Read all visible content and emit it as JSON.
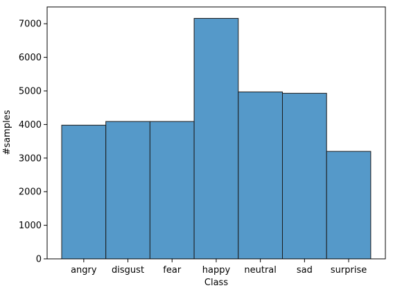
{
  "chart_data": {
    "type": "bar",
    "title": "",
    "xlabel": "Class",
    "ylabel": "#samples",
    "categories": [
      "angry",
      "disgust",
      "fear",
      "happy",
      "neutral",
      "sad",
      "surprise"
    ],
    "values": [
      3980,
      4090,
      4090,
      7160,
      4970,
      4930,
      3200
    ],
    "ylim": [
      0,
      7500
    ],
    "yticks": [
      0,
      1000,
      2000,
      3000,
      4000,
      5000,
      6000,
      7000
    ],
    "grid": false,
    "bar_color": "#5599c9",
    "edge_color": "#1a1a1a"
  }
}
